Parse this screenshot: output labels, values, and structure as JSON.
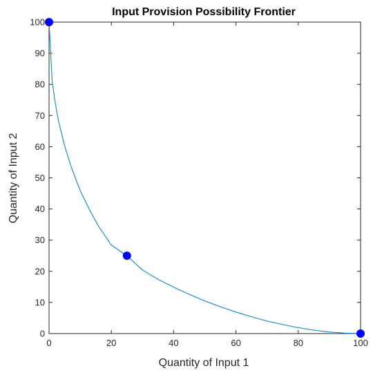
{
  "chart_data": {
    "type": "line",
    "title": "Input Provision Possibility Frontier",
    "xlabel": "Quantity of Input 1",
    "ylabel": "Quantity of Input 2",
    "xlim": [
      0,
      100
    ],
    "ylim": [
      0,
      100
    ],
    "xticks": [
      "0",
      "20",
      "40",
      "60",
      "80",
      "100"
    ],
    "yticks": [
      "0",
      "10",
      "20",
      "30",
      "40",
      "50",
      "60",
      "70",
      "80",
      "90",
      "100"
    ],
    "grid": false,
    "legend": "none",
    "series": [
      {
        "color": "#1f8fc8",
        "x": [
          0,
          1,
          2,
          3,
          5,
          7,
          10,
          13,
          16,
          20,
          25,
          30,
          35,
          40,
          45,
          50,
          55,
          60,
          65,
          70,
          75,
          80,
          85,
          90,
          95,
          100
        ],
        "y": [
          100,
          81,
          74,
          68.4,
          60.3,
          53.8,
          45.9,
          39.7,
          34.3,
          28.4,
          25,
          20.4,
          17.4,
          14.9,
          12.6,
          10.5,
          8.6,
          6.9,
          5.4,
          4.0,
          2.9,
          1.9,
          1.1,
          0.5,
          0.15,
          0
        ]
      }
    ],
    "points": [
      {
        "x": 0,
        "y": 100,
        "color": "#0000ff"
      },
      {
        "x": 25,
        "y": 25,
        "color": "#0000ff"
      },
      {
        "x": 100,
        "y": 0,
        "color": "#0000ff"
      }
    ]
  }
}
